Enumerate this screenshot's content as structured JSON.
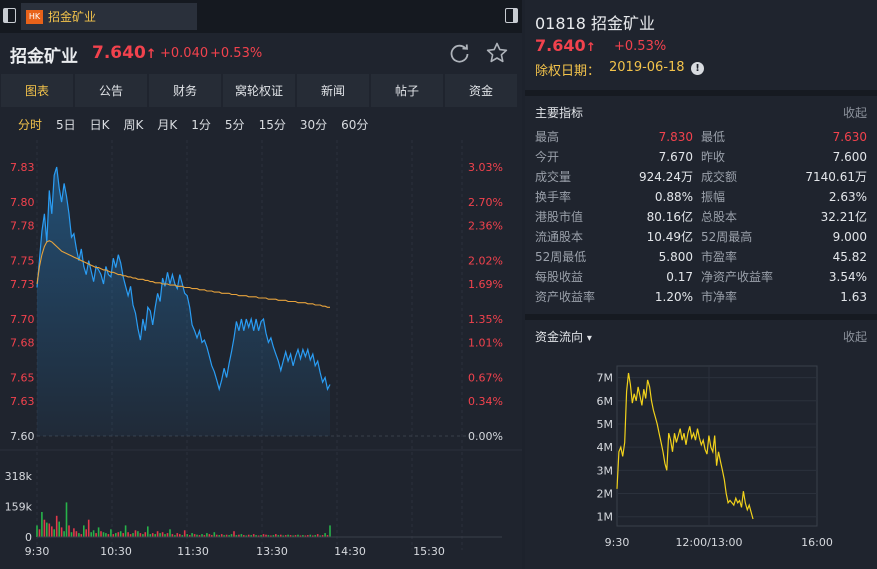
{
  "tab": {
    "badge": "HK",
    "title": "招金矿业"
  },
  "quote": {
    "name": "招金矿业",
    "price": "7.640",
    "arrow": "↑",
    "change": "+0.040",
    "change_pct": "+0.53%"
  },
  "nav": [
    "图表",
    "公告",
    "财务",
    "窝轮权证",
    "新闻",
    "帖子",
    "资金"
  ],
  "periods": [
    "分时",
    "5日",
    "日K",
    "周K",
    "月K",
    "1分",
    "5分",
    "15分",
    "30分",
    "60分"
  ],
  "chart_data": [
    {
      "type": "line",
      "title": "",
      "y_ticks_price": [
        "7.83",
        "7.80",
        "7.78",
        "7.75",
        "7.73",
        "7.70",
        "7.68",
        "7.65",
        "7.63",
        "7.60"
      ],
      "y_ticks_pct": [
        "3.03%",
        "2.70%",
        "2.36%",
        "2.02%",
        "1.69%",
        "1.35%",
        "1.01%",
        "0.67%",
        "0.34%",
        "0.00%"
      ],
      "x_ticks": [
        "9:30",
        "10:30",
        "11:30",
        "13:30",
        "14:30",
        "15:30"
      ],
      "prev_close": 7.6,
      "ylim": [
        7.6,
        7.83
      ],
      "series": [
        {
          "kind": "price",
          "color": "#2a9df4",
          "values": [
            7.727,
            7.751,
            7.775,
            7.79,
            7.766,
            7.81,
            7.79,
            7.823,
            7.83,
            7.812,
            7.8,
            7.816,
            7.805,
            7.79,
            7.77,
            7.773,
            7.76,
            7.75,
            7.76,
            7.745,
            7.738,
            7.75,
            7.741,
            7.732,
            7.745,
            7.742,
            7.738,
            7.73,
            7.745,
            7.738,
            7.736,
            7.752,
            7.744,
            7.755,
            7.748,
            7.736,
            7.728,
            7.72,
            7.728,
            7.712,
            7.705,
            7.692,
            7.682,
            7.7,
            7.69,
            7.71,
            7.707,
            7.695,
            7.71,
            7.722,
            7.715,
            7.735,
            7.728,
            7.74,
            7.73,
            7.738,
            7.73,
            7.726,
            7.738,
            7.73,
            7.722,
            7.72,
            7.71,
            7.695,
            7.69,
            7.684,
            7.69,
            7.68,
            7.682,
            7.676,
            7.668,
            7.66,
            7.655,
            7.648,
            7.64,
            7.648,
            7.658,
            7.65,
            7.662,
            7.672,
            7.684,
            7.698,
            7.69,
            7.7,
            7.69,
            7.7,
            7.693,
            7.7,
            7.69,
            7.7,
            7.69,
            7.698,
            7.7,
            7.688,
            7.68,
            7.684,
            7.676,
            7.67,
            7.664,
            7.656,
            7.664,
            7.672,
            7.664,
            7.67,
            7.66,
            7.668,
            7.674,
            7.666,
            7.674,
            7.668,
            7.674,
            7.665,
            7.67,
            7.66,
            7.664,
            7.654,
            7.646,
            7.65,
            7.64,
            7.644
          ]
        },
        {
          "kind": "average",
          "color": "#e6a23c",
          "values": [
            7.73,
            7.745,
            7.755,
            7.762,
            7.766,
            7.767,
            7.766,
            7.764,
            7.762,
            7.76,
            7.758,
            7.757,
            7.756,
            7.755,
            7.754,
            7.753,
            7.752,
            7.751,
            7.75,
            7.749,
            7.748,
            7.747,
            7.746,
            7.745,
            7.744,
            7.744,
            7.743,
            7.742,
            7.742,
            7.741,
            7.74,
            7.74,
            7.739,
            7.738,
            7.738,
            7.737,
            7.737,
            7.736,
            7.736,
            7.735,
            7.735,
            7.734,
            7.734,
            7.734,
            7.733,
            7.733,
            7.732,
            7.732,
            7.731,
            7.731,
            7.731,
            7.73,
            7.73,
            7.73,
            7.729,
            7.729,
            7.729,
            7.728,
            7.728,
            7.728,
            7.727,
            7.727,
            7.727,
            7.726,
            7.726,
            7.726,
            7.725,
            7.725,
            7.725,
            7.724,
            7.724,
            7.724,
            7.723,
            7.723,
            7.723,
            7.722,
            7.722,
            7.722,
            7.722,
            7.721,
            7.721,
            7.721,
            7.72,
            7.72,
            7.72,
            7.72,
            7.719,
            7.719,
            7.719,
            7.719,
            7.718,
            7.718,
            7.718,
            7.718,
            7.717,
            7.717,
            7.717,
            7.717,
            7.716,
            7.716,
            7.716,
            7.716,
            7.715,
            7.715,
            7.715,
            7.715,
            7.714,
            7.714,
            7.714,
            7.714,
            7.713,
            7.713,
            7.713,
            7.712,
            7.712,
            7.712,
            7.711,
            7.711,
            7.71,
            7.71
          ]
        }
      ]
    },
    {
      "type": "bar",
      "title": "",
      "y_ticks": [
        "318k",
        "159k",
        "0"
      ],
      "ylim": [
        0,
        400
      ],
      "unit": "k",
      "up_color": "#27b34a",
      "down_color": "#e0394b",
      "values": [
        60,
        40,
        130,
        90,
        75,
        70,
        55,
        40,
        110,
        80,
        50,
        30,
        180,
        60,
        25,
        45,
        30,
        20,
        15,
        60,
        40,
        90,
        25,
        35,
        20,
        50,
        30,
        25,
        20,
        15,
        40,
        15,
        20,
        25,
        30,
        20,
        60,
        25,
        15,
        20,
        35,
        30,
        20,
        15,
        25,
        55,
        15,
        20,
        15,
        30,
        20,
        25,
        15,
        20,
        40,
        15,
        10,
        20,
        15,
        10,
        35,
        15,
        10,
        20,
        15,
        12,
        10,
        15,
        10,
        20,
        15,
        10,
        25,
        12,
        10,
        15,
        10,
        12,
        10,
        15,
        30,
        10,
        12,
        15,
        10,
        8,
        12,
        10,
        15,
        10,
        8,
        10,
        15,
        12,
        10,
        8,
        10,
        15,
        10,
        12,
        8,
        10,
        12,
        10,
        8,
        10,
        12,
        8,
        10,
        8,
        10,
        12,
        8,
        10,
        15,
        8,
        10,
        20,
        10,
        60
      ],
      "directions": [
        1,
        0,
        1,
        0,
        1,
        0,
        0,
        1,
        0,
        1,
        0,
        1,
        1,
        0,
        1,
        0,
        0,
        1,
        0,
        1,
        0,
        0,
        1,
        1,
        0,
        1,
        0,
        1,
        1,
        0,
        1,
        0,
        1,
        0,
        1,
        0,
        1,
        0,
        0,
        1,
        0,
        1,
        0,
        1,
        0,
        1,
        1,
        0,
        1,
        0,
        1,
        0,
        1,
        0,
        1,
        0,
        1,
        0,
        0,
        1,
        0,
        1,
        0,
        1,
        0,
        1,
        0,
        1,
        0,
        1,
        0,
        0,
        1,
        0,
        1,
        0,
        1,
        0,
        1,
        1,
        0,
        1,
        0,
        1,
        0,
        1,
        0,
        1,
        0,
        1,
        0,
        1,
        0,
        0,
        1,
        0,
        1,
        0,
        1,
        0,
        1,
        0,
        1,
        0,
        1,
        0,
        1,
        0,
        1,
        0,
        0,
        1,
        0,
        1,
        0,
        1,
        0,
        1,
        0,
        1
      ]
    },
    {
      "type": "line",
      "title": "",
      "y_ticks": [
        "7M",
        "6M",
        "5M",
        "4M",
        "3M",
        "2M",
        "1M"
      ],
      "x_ticks": [
        "9:30",
        "12:00/13:00",
        "16:00"
      ],
      "ylim": [
        0.6,
        7.5
      ],
      "unit": "M",
      "color": "#f2d21b",
      "values": [
        2.2,
        3.8,
        4.0,
        3.6,
        4.2,
        6.4,
        7.2,
        6.7,
        5.9,
        6.3,
        6.0,
        6.6,
        6.2,
        5.8,
        6.5,
        6.1,
        6.9,
        6.6,
        6.0,
        5.6,
        5.3,
        5.0,
        4.6,
        4.2,
        3.8,
        3.3,
        3.0,
        4.6,
        4.3,
        3.8,
        4.6,
        4.2,
        4.5,
        4.8,
        4.3,
        4.6,
        4.1,
        4.6,
        4.9,
        4.4,
        4.6,
        4.3,
        4.8,
        4.4,
        4.1,
        4.3,
        3.9,
        3.7,
        4.5,
        4.0,
        3.8,
        4.5,
        3.2,
        3.8,
        3.4,
        3.0,
        2.6,
        2.0,
        1.6,
        1.7,
        1.6,
        1.5,
        1.8,
        1.6,
        1.7,
        1.4,
        2.1,
        1.6,
        1.3,
        1.5,
        1.2,
        0.9
      ]
    }
  ],
  "detail": {
    "code": "01818",
    "name": "招金矿业",
    "price": "7.640",
    "arrow": "↑",
    "change_pct": "+0.53%",
    "exdiv_label": "除权日期：",
    "exdiv_date": "2019-06-18",
    "info_glyph": "!"
  },
  "metrics_section": {
    "title": "主要指标",
    "collapse": "收起"
  },
  "metrics": [
    [
      {
        "label": "最高",
        "value": "7.830",
        "red": true
      },
      {
        "label": "最低",
        "value": "7.630",
        "red": true
      }
    ],
    [
      {
        "label": "今开",
        "value": "7.670"
      },
      {
        "label": "昨收",
        "value": "7.600"
      }
    ],
    [
      {
        "label": "成交量",
        "value": "924.24万"
      },
      {
        "label": "成交额",
        "value": "7140.61万"
      }
    ],
    [
      {
        "label": "换手率",
        "value": "0.88%"
      },
      {
        "label": "振幅",
        "value": "2.63%"
      }
    ],
    [
      {
        "label": "港股市值",
        "value": "80.16亿"
      },
      {
        "label": "总股本",
        "value": "32.21亿"
      }
    ],
    [
      {
        "label": "流通股本",
        "value": "10.49亿"
      },
      {
        "label": "52周最高",
        "value": "9.000"
      }
    ],
    [
      {
        "label": "52周最低",
        "value": "5.800"
      },
      {
        "label": "市盈率",
        "value": "45.82"
      }
    ],
    [
      {
        "label": "每股收益",
        "value": "0.17"
      },
      {
        "label": "净资产收益率",
        "value": "3.54%"
      }
    ],
    [
      {
        "label": "资产收益率",
        "value": "1.20%"
      },
      {
        "label": "市净率",
        "value": "1.63"
      }
    ]
  ],
  "flow_section": {
    "title": "资金流向",
    "caret": "▾",
    "collapse": "收起"
  },
  "colors": {
    "up": "#f2424d",
    "accent": "#f3c34b",
    "price_line": "#2a9df4",
    "avg_line": "#e6a23c",
    "flow_line": "#f2d21b"
  }
}
